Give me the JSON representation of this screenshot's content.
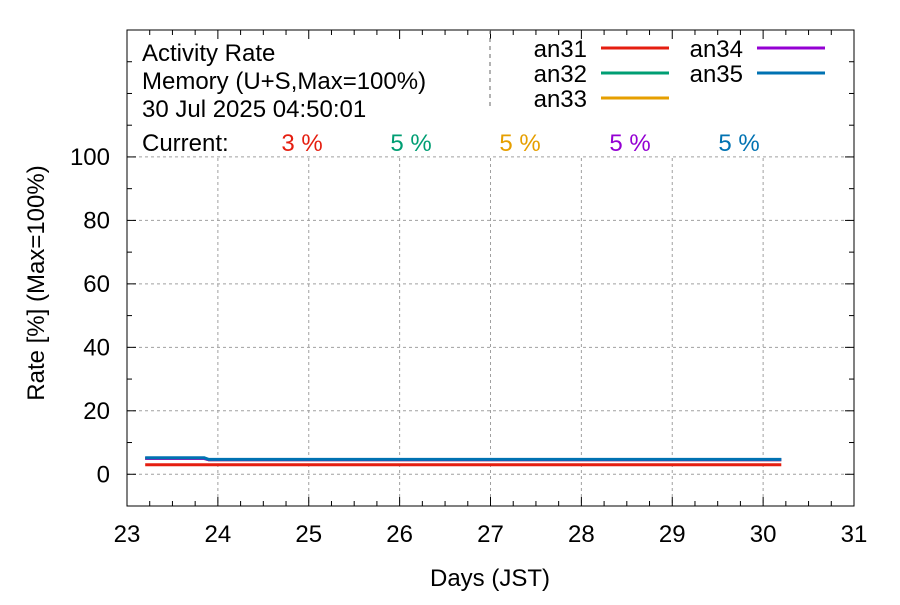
{
  "chart_data": {
    "type": "line",
    "header": {
      "line1": "Activity Rate",
      "line2": "Memory (U+S,Max=100%)",
      "line3": "30 Jul 2025 04:50:01"
    },
    "current_label": "Current:",
    "xlabel": "Days (JST)",
    "ylabel": "Rate [%]  (Max=100%)",
    "xlim": [
      23,
      31
    ],
    "ylim": [
      -10,
      140
    ],
    "x_ticks": [
      23,
      24,
      25,
      26,
      27,
      28,
      29,
      30,
      31
    ],
    "y_ticks": [
      0,
      20,
      40,
      60,
      80,
      100
    ],
    "grid": true,
    "legend_position": "top-right",
    "series": [
      {
        "name": "an31",
        "color": "#e51e10",
        "current": "3 %",
        "points": [
          [
            23.2,
            3
          ],
          [
            30.2,
            3
          ]
        ]
      },
      {
        "name": "an32",
        "color": "#009e73",
        "current": "5 %",
        "points": [
          [
            23.2,
            5
          ],
          [
            23.85,
            5
          ],
          [
            23.9,
            4.6
          ],
          [
            30.2,
            4.6
          ]
        ]
      },
      {
        "name": "an33",
        "color": "#e69f00",
        "current": "5 %",
        "points": [
          [
            23.2,
            5
          ],
          [
            23.85,
            5
          ],
          [
            23.9,
            4.6
          ],
          [
            30.2,
            4.6
          ]
        ]
      },
      {
        "name": "an34",
        "color": "#9400d3",
        "current": "5 %",
        "points": [
          [
            23.2,
            5
          ],
          [
            23.85,
            5
          ],
          [
            23.9,
            4.6
          ],
          [
            30.2,
            4.6
          ]
        ]
      },
      {
        "name": "an35",
        "color": "#0072b2",
        "current": "5 %",
        "points": [
          [
            23.2,
            5.2
          ],
          [
            23.85,
            5.2
          ],
          [
            23.9,
            4.7
          ],
          [
            30.2,
            4.7
          ]
        ]
      }
    ]
  }
}
